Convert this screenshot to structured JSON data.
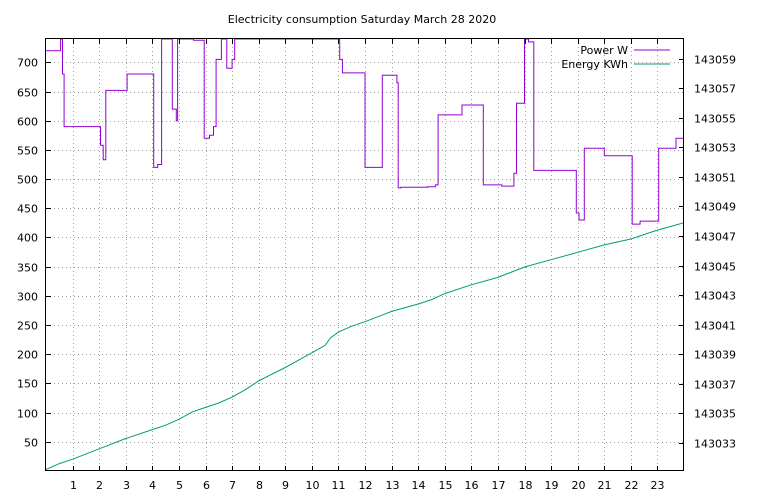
{
  "chart_data": {
    "type": "line",
    "title": "Electricity consumption Saturday March 28 2020",
    "grid": true,
    "legend_position": "top-right",
    "xlim": [
      0,
      24
    ],
    "ylim": [
      0,
      740
    ],
    "y2lim": [
      143031.1,
      143060.33
    ],
    "x_ticks": [
      1,
      2,
      3,
      4,
      5,
      6,
      7,
      8,
      9,
      10,
      11,
      12,
      13,
      14,
      15,
      16,
      17,
      18,
      19,
      20,
      21,
      22,
      23
    ],
    "y_ticks": [
      50,
      100,
      150,
      200,
      250,
      300,
      350,
      400,
      450,
      500,
      550,
      600,
      650,
      700
    ],
    "y2_ticks": [
      143033,
      143035,
      143037,
      143039,
      143041,
      143043,
      143045,
      143047,
      143049,
      143051,
      143053,
      143055,
      143057,
      143059
    ],
    "series": [
      {
        "name": "Power W",
        "axis": "y",
        "color": "#9400d3",
        "step": true,
        "x": [
          0,
          0.3,
          0.55,
          0.62,
          0.68,
          1.15,
          2.05,
          2.15,
          2.25,
          2.85,
          3.05,
          4.05,
          4.2,
          4.35,
          4.75,
          4.85,
          4.9,
          4.95,
          5.3,
          5.55,
          5.95,
          6.15,
          6.3,
          6.4,
          6.6,
          6.8,
          7.0,
          7.1,
          11.0,
          11.05,
          11.15,
          11.45,
          12.0,
          12.55,
          12.65,
          13.1,
          13.2,
          13.25,
          13.35,
          14.35,
          14.65,
          14.75,
          15.25,
          15.65,
          16.0,
          16.45,
          17.15,
          17.25,
          17.6,
          17.7,
          18.0,
          18.15,
          18.35,
          19.3,
          19.95,
          20.05,
          20.25,
          21.0,
          21.05,
          22.05,
          22.35,
          23.05,
          23.6,
          23.7,
          24.0
        ],
        "values": [
          720,
          720,
          740,
          680,
          590,
          590,
          558,
          533,
          652,
          652,
          680,
          520,
          525,
          740,
          620,
          620,
          600,
          740,
          740,
          738,
          570,
          575,
          590,
          705,
          740,
          690,
          705,
          740,
          740,
          705,
          682,
          682,
          520,
          520,
          678,
          678,
          665,
          485,
          486,
          487,
          490,
          610,
          610,
          627,
          627,
          490,
          488,
          488,
          510,
          630,
          740,
          735,
          515,
          515,
          442,
          430,
          553,
          540,
          540,
          423,
          428,
          553,
          553,
          570,
          450
        ]
      },
      {
        "name": "Energy KWh",
        "axis": "y2",
        "color": "#009e73",
        "step": false,
        "x": [
          0,
          0.5,
          1,
          2,
          3,
          4,
          4.5,
          5,
          5.5,
          6,
          6.5,
          7,
          7.5,
          8,
          9,
          9.5,
          10,
          10.3,
          10.5,
          10.7,
          11,
          11.5,
          12,
          13,
          14,
          14.5,
          15,
          16,
          17,
          18,
          19,
          20,
          21,
          22,
          22.5,
          23,
          24
        ],
        "values": [
          143031.2,
          143031.6,
          143031.9,
          143032.6,
          143033.3,
          143033.9,
          143034.2,
          143034.6,
          143035.1,
          143035.4,
          143035.7,
          143036.1,
          143036.6,
          143037.2,
          143038.1,
          143038.6,
          143039.1,
          143039.4,
          143039.6,
          143040.1,
          143040.5,
          143040.9,
          143041.2,
          143041.9,
          143042.4,
          143042.7,
          143043.1,
          143043.7,
          143044.2,
          143044.9,
          143045.4,
          143045.9,
          143046.4,
          143046.8,
          143047.1,
          143047.4,
          143047.9
        ]
      }
    ]
  }
}
